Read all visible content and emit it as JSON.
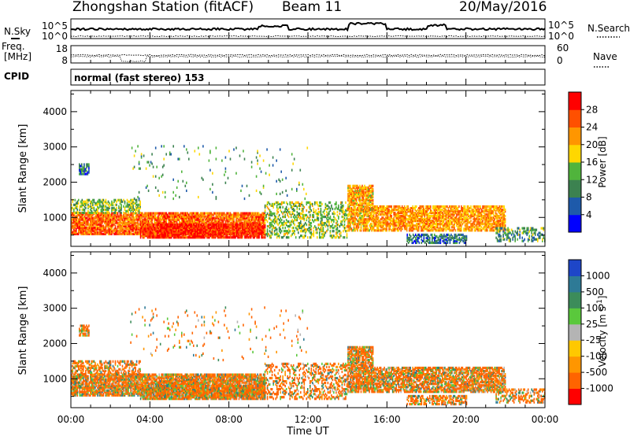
{
  "header": {
    "station": "Zhongshan Station (fitACF)",
    "beam": "Beam 11",
    "date": "20/May/2016"
  },
  "top_panels": {
    "nsky_label": "N.Sky",
    "nsky_ticks": [
      "10^5",
      "10^0"
    ],
    "nsearch_label": "N.Search",
    "nsearch_ticks": [
      "10^5",
      "10^0"
    ],
    "freq_label_1": "Freq.",
    "freq_label_2": "[MHz]",
    "freq_ticks": [
      "18",
      "8"
    ],
    "nave_label": "Nave",
    "nave_ticks": [
      "60",
      "0"
    ],
    "cpid_label": "CPID",
    "cpid_value": "normal (fast stereo) 153"
  },
  "chart_data": [
    {
      "type": "heatmap",
      "name": "power",
      "ylabel": "Slant Range [km]",
      "yticks": [
        "1000",
        "2000",
        "3000",
        "4000"
      ],
      "ylim": [
        180,
        4600
      ],
      "xlim_hours": [
        0,
        24
      ],
      "colorbar": {
        "label": "Power [dB]",
        "ticks": [
          "4",
          "8",
          "12",
          "16",
          "20",
          "24",
          "28"
        ],
        "range": [
          0,
          32
        ],
        "colors": [
          "#0000ff",
          "#1e5aaa",
          "#3c8250",
          "#50b43c",
          "#ffd700",
          "#ff9600",
          "#ff5000",
          "#ff0000"
        ]
      }
    },
    {
      "type": "heatmap",
      "name": "velocity",
      "ylabel": "Slant Range [km]",
      "yticks": [
        "1000",
        "2000",
        "3000",
        "4000"
      ],
      "ylim": [
        180,
        4600
      ],
      "xlim_hours": [
        0,
        24
      ],
      "colorbar": {
        "label": "Velocity [m s^-1]",
        "ticks": [
          "1000",
          "500",
          "100",
          "25",
          "-25",
          "-100",
          "-500",
          "-1000"
        ],
        "colors": [
          "#1e46c8",
          "#2e7a96",
          "#3c8c5a",
          "#5ac83c",
          "#b4b4b4",
          "#ffc800",
          "#ff9600",
          "#ff6400",
          "#ff0000"
        ]
      }
    }
  ],
  "xaxis": {
    "label": "Time UT",
    "ticks": [
      "00:00",
      "04:00",
      "08:00",
      "12:00",
      "16:00",
      "20:00",
      "00:00"
    ]
  }
}
